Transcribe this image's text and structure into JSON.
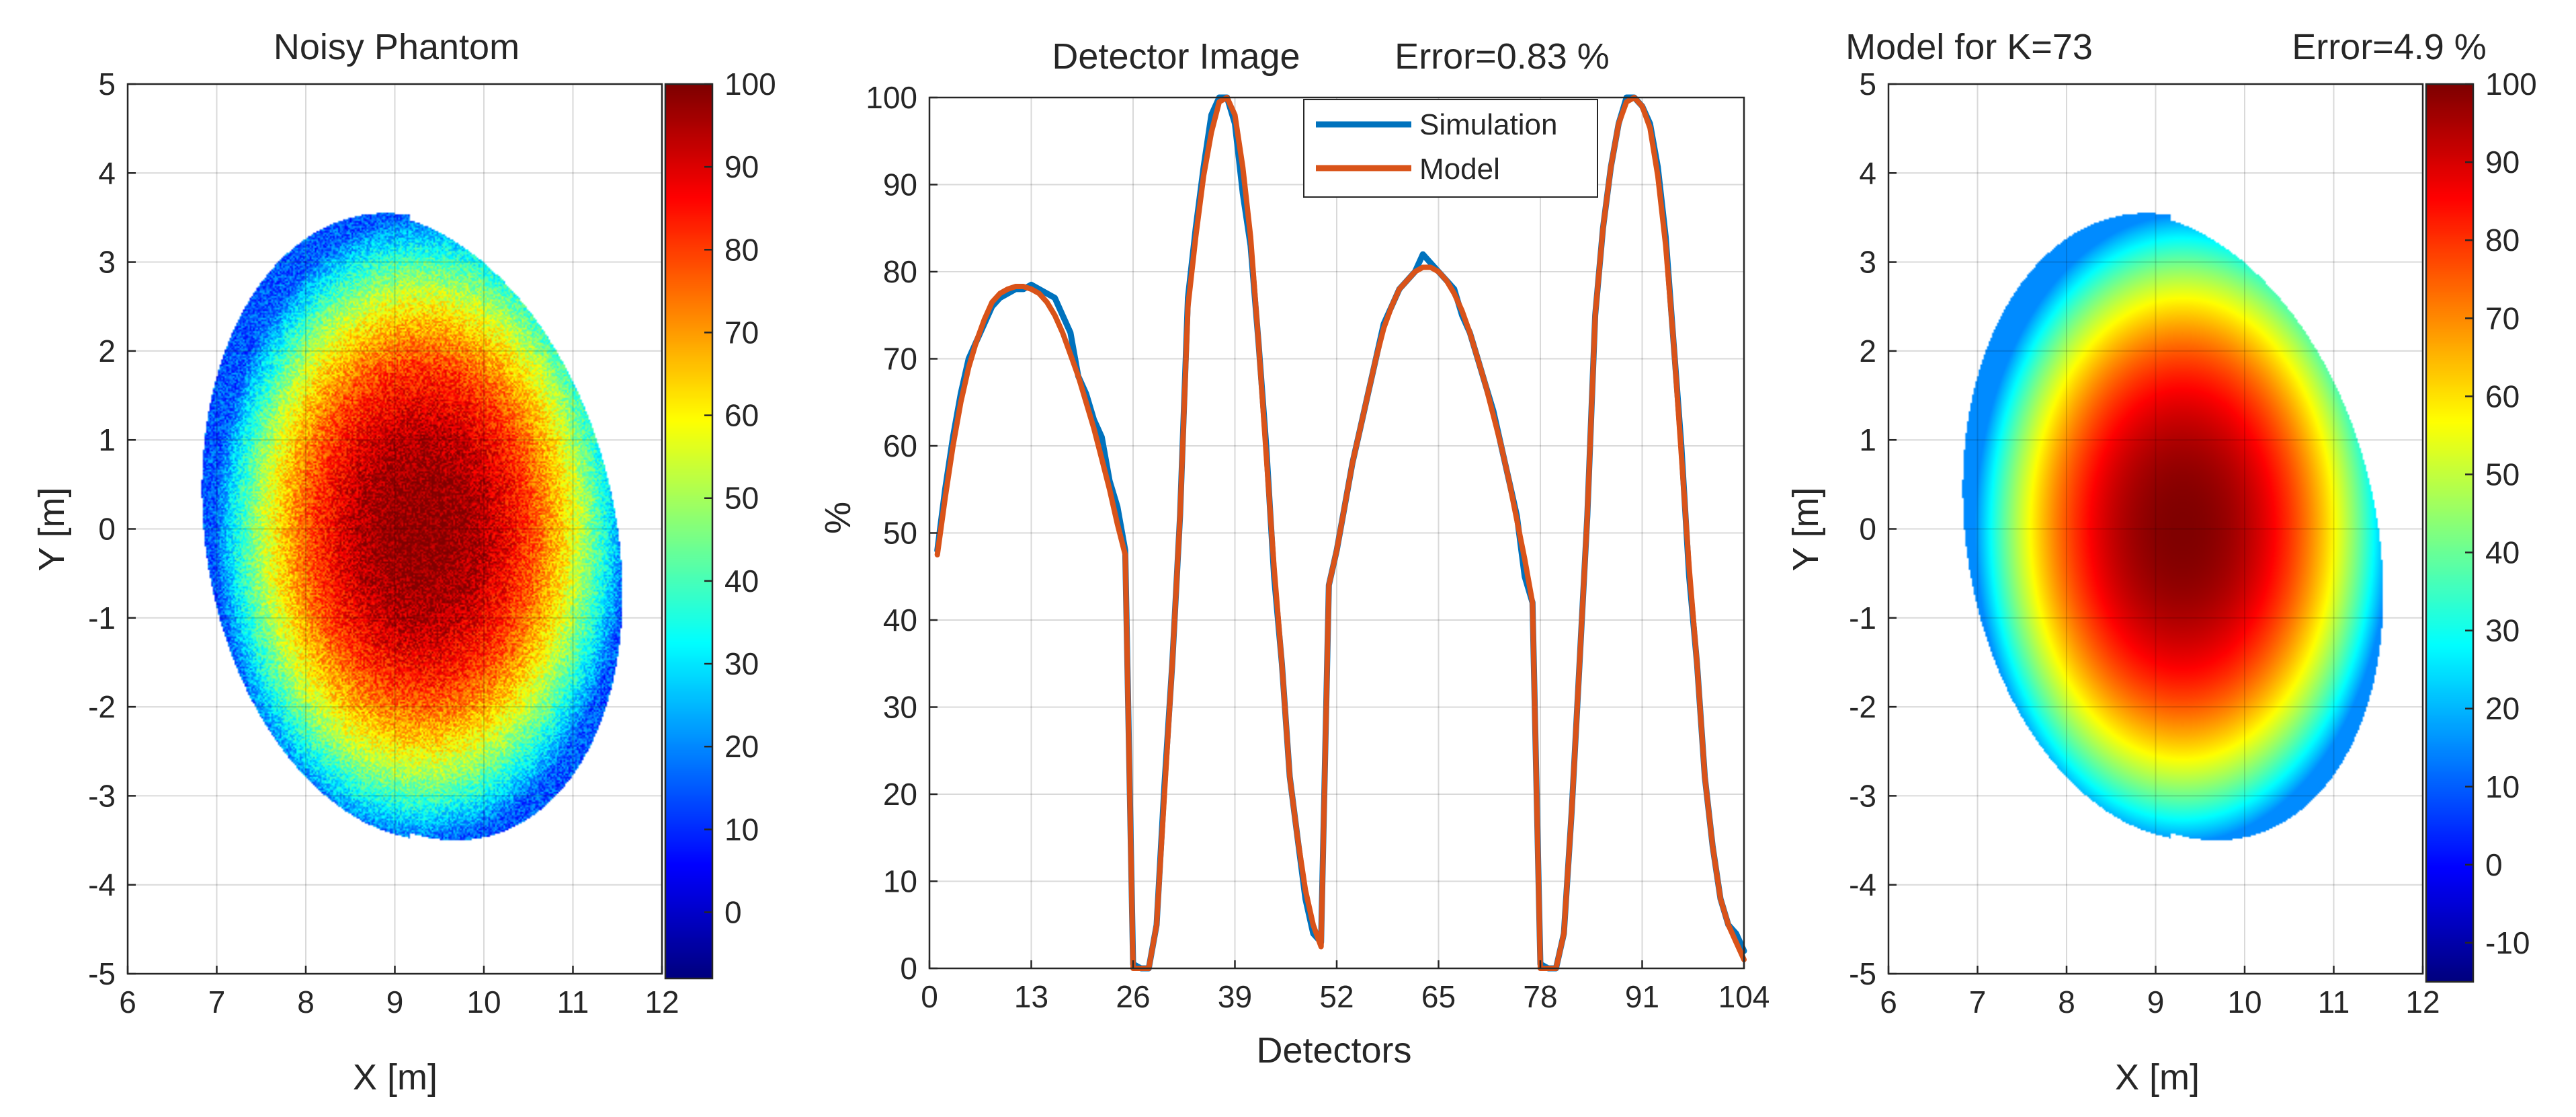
{
  "chart_data": [
    {
      "type": "heatmap",
      "title": "Noisy Phantom",
      "xlabel": "X [m]",
      "ylabel": "Y [m]",
      "xlim": [
        6,
        12
      ],
      "ylim": [
        -5,
        5
      ],
      "xticks": [
        "6",
        "7",
        "8",
        "9",
        "10",
        "11",
        "12"
      ],
      "yticks": [
        "5",
        "4",
        "3",
        "2",
        "1",
        "0",
        "-1",
        "-2",
        "-3",
        "-4",
        "-5"
      ],
      "grid": true,
      "noisy": true,
      "colormap": "jet",
      "colorbar": {
        "range": [
          -8,
          100
        ],
        "ticks": [
          "100",
          "90",
          "80",
          "70",
          "60",
          "50",
          "40",
          "30",
          "20",
          "10",
          "0"
        ]
      },
      "emission_region": {
        "x_min": 6.85,
        "x_max": 11.5,
        "y_min": -3.5,
        "y_max": 3.55,
        "peak_value": 100,
        "peak_x": 9.3,
        "peak_y": 0.0,
        "edge_value": 15
      }
    },
    {
      "type": "line",
      "title": "Detector Image",
      "error_label": "Error=0.83 %",
      "xlabel": "Detectors",
      "ylabel": "%",
      "xlim": [
        0,
        104
      ],
      "ylim": [
        0,
        100
      ],
      "xticks": [
        "0",
        "13",
        "26",
        "39",
        "52",
        "65",
        "78",
        "91",
        "104"
      ],
      "yticks": [
        "100",
        "90",
        "80",
        "70",
        "60",
        "50",
        "40",
        "30",
        "20",
        "10",
        "0"
      ],
      "grid": true,
      "legend": "top-center",
      "series": [
        {
          "name": "Simulation",
          "color": "#0072BD",
          "points": [
            [
              1,
              48
            ],
            [
              2,
              55
            ],
            [
              3,
              61
            ],
            [
              4,
              66
            ],
            [
              5,
              70
            ],
            [
              6,
              72
            ],
            [
              7,
              74
            ],
            [
              8,
              76
            ],
            [
              9,
              77
            ],
            [
              10,
              77.5
            ],
            [
              11,
              78
            ],
            [
              12,
              78
            ],
            [
              13,
              78.5
            ],
            [
              14,
              78
            ],
            [
              15,
              77.5
            ],
            [
              16,
              77
            ],
            [
              17,
              75
            ],
            [
              18,
              73
            ],
            [
              19,
              68
            ],
            [
              20,
              66
            ],
            [
              21,
              63
            ],
            [
              22,
              61
            ],
            [
              23,
              56
            ],
            [
              24,
              53
            ],
            [
              25,
              48
            ],
            [
              26,
              0.5
            ],
            [
              27,
              0
            ],
            [
              28,
              0
            ],
            [
              29,
              5
            ],
            [
              30,
              21
            ],
            [
              31,
              35
            ],
            [
              32,
              52
            ],
            [
              33,
              77
            ],
            [
              34,
              85
            ],
            [
              35,
              92
            ],
            [
              36,
              98
            ],
            [
              37,
              100
            ],
            [
              38,
              100
            ],
            [
              39,
              97
            ],
            [
              40,
              89
            ],
            [
              41,
              83
            ],
            [
              42,
              72
            ],
            [
              43,
              60
            ],
            [
              44,
              45
            ],
            [
              45,
              35
            ],
            [
              46,
              22
            ],
            [
              47,
              15
            ],
            [
              48,
              8
            ],
            [
              49,
              4
            ],
            [
              50,
              3
            ],
            [
              51,
              44
            ],
            [
              52,
              48
            ],
            [
              53,
              53
            ],
            [
              54,
              58
            ],
            [
              55,
              62
            ],
            [
              56,
              66
            ],
            [
              57,
              70
            ],
            [
              58,
              74
            ],
            [
              59,
              76
            ],
            [
              60,
              78
            ],
            [
              61,
              79
            ],
            [
              62,
              80
            ],
            [
              63,
              82
            ],
            [
              64,
              81
            ],
            [
              65,
              80
            ],
            [
              66,
              79
            ],
            [
              67,
              78
            ],
            [
              68,
              75
            ],
            [
              69,
              73
            ],
            [
              70,
              70
            ],
            [
              71,
              67
            ],
            [
              72,
              64
            ],
            [
              73,
              60
            ],
            [
              74,
              56
            ],
            [
              75,
              52
            ],
            [
              76,
              45
            ],
            [
              77,
              42
            ],
            [
              78,
              0.5
            ],
            [
              79,
              0
            ],
            [
              80,
              0
            ],
            [
              81,
              4
            ],
            [
              82,
              18
            ],
            [
              83,
              35
            ],
            [
              84,
              52
            ],
            [
              85,
              75
            ],
            [
              86,
              85
            ],
            [
              87,
              92
            ],
            [
              88,
              97
            ],
            [
              89,
              100
            ],
            [
              90,
              100
            ],
            [
              91,
              99
            ],
            [
              92,
              97
            ],
            [
              93,
              92
            ],
            [
              94,
              84
            ],
            [
              95,
              72
            ],
            [
              96,
              60
            ],
            [
              97,
              45
            ],
            [
              98,
              35
            ],
            [
              99,
              22
            ],
            [
              100,
              14
            ],
            [
              101,
              8
            ],
            [
              102,
              5
            ],
            [
              103,
              4
            ],
            [
              104,
              2
            ]
          ]
        },
        {
          "name": "Model",
          "color": "#D95319",
          "points": [
            [
              1,
              47.5
            ],
            [
              2,
              54
            ],
            [
              3,
              60
            ],
            [
              4,
              65
            ],
            [
              5,
              69
            ],
            [
              6,
              72
            ],
            [
              7,
              74.5
            ],
            [
              8,
              76.5
            ],
            [
              9,
              77.5
            ],
            [
              10,
              78
            ],
            [
              11,
              78.3
            ],
            [
              12,
              78.3
            ],
            [
              13,
              78
            ],
            [
              14,
              77.5
            ],
            [
              15,
              76.5
            ],
            [
              16,
              75
            ],
            [
              17,
              73
            ],
            [
              18,
              70.5
            ],
            [
              19,
              68
            ],
            [
              20,
              65
            ],
            [
              21,
              62
            ],
            [
              22,
              58.5
            ],
            [
              23,
              55
            ],
            [
              24,
              51
            ],
            [
              25,
              47.5
            ],
            [
              26,
              0
            ],
            [
              27,
              0
            ],
            [
              28,
              0
            ],
            [
              29,
              5
            ],
            [
              30,
              20
            ],
            [
              31,
              35
            ],
            [
              32,
              52
            ],
            [
              33,
              76
            ],
            [
              34,
              84
            ],
            [
              35,
              91
            ],
            [
              36,
              96
            ],
            [
              37,
              99.5
            ],
            [
              38,
              100
            ],
            [
              39,
              98
            ],
            [
              40,
              92
            ],
            [
              41,
              84
            ],
            [
              42,
              72
            ],
            [
              43,
              59
            ],
            [
              44,
              46
            ],
            [
              45,
              35
            ],
            [
              46,
              22
            ],
            [
              47,
              15
            ],
            [
              48,
              9
            ],
            [
              49,
              5
            ],
            [
              50,
              2.5
            ],
            [
              51,
              44
            ],
            [
              52,
              48
            ],
            [
              53,
              53
            ],
            [
              54,
              58
            ],
            [
              55,
              62
            ],
            [
              56,
              66
            ],
            [
              57,
              70
            ],
            [
              58,
              73.5
            ],
            [
              59,
              76
            ],
            [
              60,
              78
            ],
            [
              61,
              79
            ],
            [
              62,
              80
            ],
            [
              63,
              80.5
            ],
            [
              64,
              80.5
            ],
            [
              65,
              80
            ],
            [
              66,
              79
            ],
            [
              67,
              77.5
            ],
            [
              68,
              75.5
            ],
            [
              69,
              73
            ],
            [
              70,
              70
            ],
            [
              71,
              67
            ],
            [
              72,
              63.5
            ],
            [
              73,
              60
            ],
            [
              74,
              56
            ],
            [
              75,
              51.5
            ],
            [
              76,
              47
            ],
            [
              77,
              42
            ],
            [
              78,
              0
            ],
            [
              79,
              0
            ],
            [
              80,
              0
            ],
            [
              81,
              4
            ],
            [
              82,
              18
            ],
            [
              83,
              35
            ],
            [
              84,
              52
            ],
            [
              85,
              75
            ],
            [
              86,
              85
            ],
            [
              87,
              92
            ],
            [
              88,
              97
            ],
            [
              89,
              99.5
            ],
            [
              90,
              100
            ],
            [
              91,
              99
            ],
            [
              92,
              96.5
            ],
            [
              93,
              91
            ],
            [
              94,
              83
            ],
            [
              95,
              72
            ],
            [
              96,
              59
            ],
            [
              97,
              46
            ],
            [
              98,
              35
            ],
            [
              99,
              22
            ],
            [
              100,
              14
            ],
            [
              101,
              8
            ],
            [
              102,
              5
            ],
            [
              103,
              3
            ],
            [
              104,
              1
            ]
          ]
        }
      ]
    },
    {
      "type": "heatmap",
      "title": "Model for K=73",
      "error_label": "Error=4.9 %",
      "xlabel": "X [m]",
      "ylabel": "Y [m]",
      "xlim": [
        6,
        12
      ],
      "ylim": [
        -5,
        5
      ],
      "xticks": [
        "6",
        "7",
        "8",
        "9",
        "10",
        "11",
        "12"
      ],
      "yticks": [
        "5",
        "4",
        "3",
        "2",
        "1",
        "0",
        "-1",
        "-2",
        "-3",
        "-4",
        "-5"
      ],
      "grid": true,
      "noisy": false,
      "colormap": "jet",
      "colorbar": {
        "range": [
          -15,
          100
        ],
        "ticks": [
          "100",
          "90",
          "80",
          "70",
          "60",
          "50",
          "40",
          "30",
          "20",
          "10",
          "0",
          "-10"
        ]
      },
      "emission_region": {
        "x_min": 6.85,
        "x_max": 11.5,
        "y_min": -3.5,
        "y_max": 3.55,
        "peak_value": 100,
        "peak_x": 9.3,
        "peak_y": 0.0,
        "edge_value": 15
      }
    }
  ]
}
